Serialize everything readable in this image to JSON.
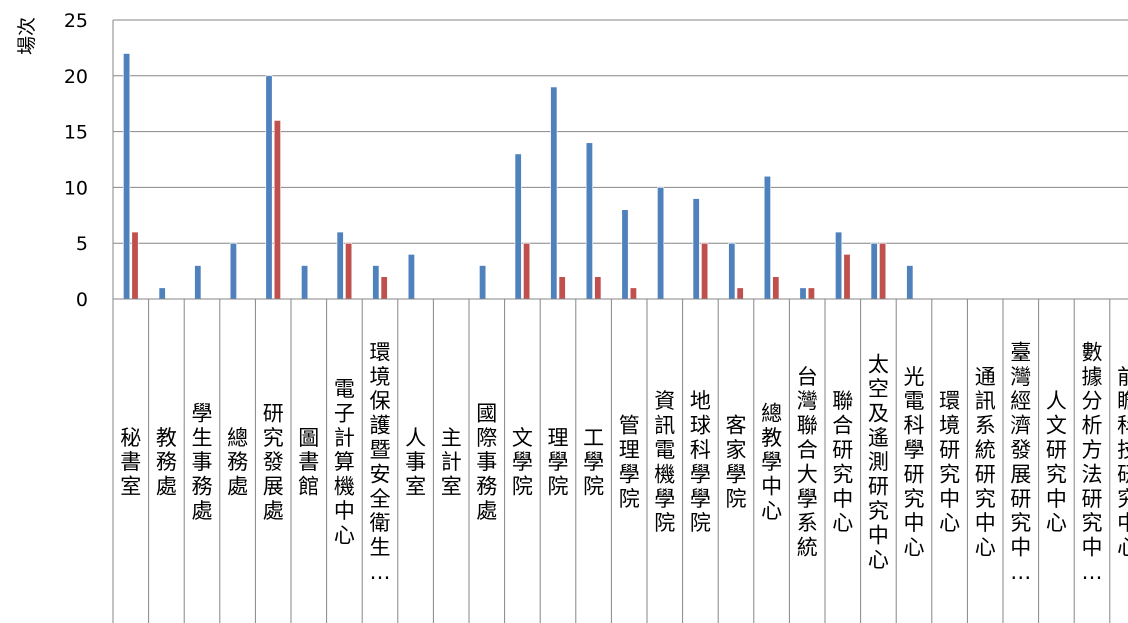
{
  "chart_data": {
    "type": "bar",
    "title": "",
    "xlabel": "",
    "ylabel": "場次",
    "ylim": [
      0,
      25
    ],
    "yticks": [
      0,
      5,
      10,
      15,
      20,
      25
    ],
    "grid": true,
    "legend": "none",
    "categories": [
      "秘書室",
      "教務處",
      "學生事務處",
      "總務處",
      "研究發展處",
      "圖書館",
      "電子計算機中心",
      "環境保護暨安全衛生…",
      "人事室",
      "主計室",
      "國際事務處",
      "文學院",
      "理學院",
      "工學院",
      "管理學院",
      "資訊電機學院",
      "地球科學學院",
      "客家學院",
      "總教學中心",
      "台灣聯合大學系統",
      "聯合研究中心",
      "太空及遙測研究中心",
      "光電科學研究中心",
      "環境研究中心",
      "通訊系統研究中心",
      "臺灣經濟發展研究中…",
      "人文研究中心",
      "數據分析方法研究中…",
      "前瞻科技研究中心"
    ],
    "series": [
      {
        "color": "#4F81BD",
        "values": [
          22,
          1,
          3,
          5,
          20,
          3,
          6,
          3,
          4,
          0,
          3,
          13,
          19,
          14,
          8,
          10,
          9,
          5,
          11,
          1,
          6,
          5,
          3,
          0,
          0,
          0,
          0,
          0,
          0
        ]
      },
      {
        "color": "#C0504D",
        "values": [
          6,
          0,
          0,
          0,
          16,
          0,
          5,
          2,
          0,
          0,
          0,
          5,
          2,
          2,
          1,
          0,
          5,
          1,
          2,
          1,
          4,
          5,
          0,
          0,
          0,
          0,
          0,
          0,
          0
        ]
      }
    ]
  }
}
